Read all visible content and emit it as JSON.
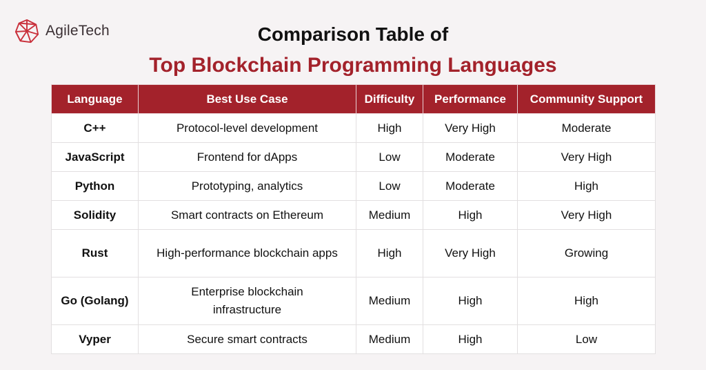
{
  "brand": {
    "name_part1": "Agile",
    "name_part2": "Tech",
    "logo_color": "#c9303b"
  },
  "title_line1": "Comparison Table of",
  "title_line2": "Top Blockchain Programming Languages",
  "colors": {
    "accent": "#a3222b",
    "background": "#f6f3f4"
  },
  "table": {
    "headers": [
      "Language",
      "Best Use Case",
      "Difficulty",
      "Performance",
      "Community Support"
    ],
    "rows": [
      [
        "C++",
        "Protocol-level development",
        "High",
        "Very High",
        "Moderate"
      ],
      [
        "JavaScript",
        "Frontend for dApps",
        "Low",
        "Moderate",
        "Very High"
      ],
      [
        "Python",
        "Prototyping, analytics",
        "Low",
        "Moderate",
        "High"
      ],
      [
        "Solidity",
        "Smart contracts on Ethereum",
        "Medium",
        "High",
        "Very High"
      ],
      [
        "Rust",
        "High-performance blockchain apps",
        "High",
        "Very High",
        "Growing"
      ],
      [
        "Go (Golang)",
        "Enterprise blockchain infrastructure",
        "Medium",
        "High",
        "High"
      ],
      [
        "Vyper",
        "Secure smart contracts",
        "Medium",
        "High",
        "Low"
      ]
    ]
  }
}
